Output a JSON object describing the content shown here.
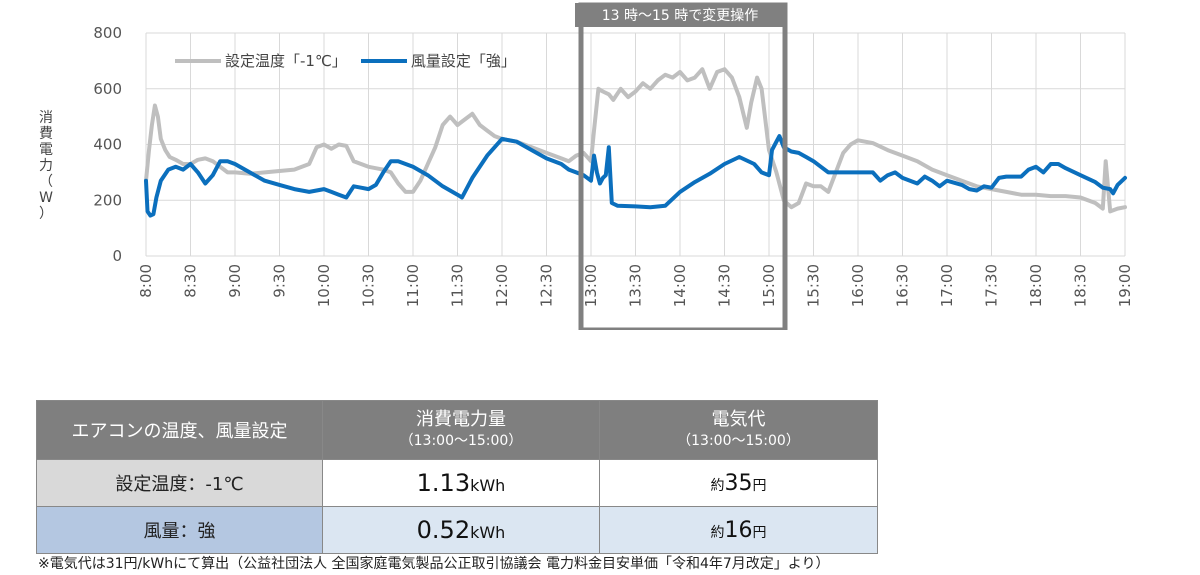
{
  "chart_data": {
    "type": "line",
    "y_ticks": [
      "0",
      "200",
      "400",
      "600",
      "800"
    ],
    "ylim": [
      0,
      800
    ],
    "grid": true,
    "ylabel": "消費電力（W）",
    "x_ticks": [
      "8:00",
      "8:30",
      "9:00",
      "9:30",
      "10:00",
      "10:30",
      "11:00",
      "11:30",
      "12:00",
      "12:30",
      "13:00",
      "13:30",
      "14:00",
      "14:30",
      "15:00",
      "15:30",
      "16:00",
      "16:30",
      "17:00",
      "17:30",
      "18:00",
      "18:30",
      "19:00"
    ],
    "x_range_minutes": [
      480,
      1140
    ],
    "annotation": "13 時～15 時で変更操作",
    "annotation_range": [
      "13:00",
      "15:00"
    ],
    "series": [
      {
        "name": "設定温度「-1℃」",
        "color": "#bfbfbf",
        "points": [
          [
            "8:00",
            270
          ],
          [
            "8:02",
            380
          ],
          [
            "8:04",
            470
          ],
          [
            "8:06",
            540
          ],
          [
            "8:08",
            500
          ],
          [
            "8:10",
            420
          ],
          [
            "8:13",
            380
          ],
          [
            "8:16",
            355
          ],
          [
            "8:20",
            345
          ],
          [
            "8:25",
            330
          ],
          [
            "8:30",
            330
          ],
          [
            "8:35",
            345
          ],
          [
            "8:40",
            350
          ],
          [
            "8:45",
            340
          ],
          [
            "8:50",
            320
          ],
          [
            "8:55",
            300
          ],
          [
            "9:00",
            300
          ],
          [
            "9:10",
            295
          ],
          [
            "9:20",
            300
          ],
          [
            "9:30",
            305
          ],
          [
            "9:40",
            310
          ],
          [
            "9:50",
            330
          ],
          [
            "9:55",
            390
          ],
          [
            "10:00",
            400
          ],
          [
            "10:05",
            385
          ],
          [
            "10:10",
            400
          ],
          [
            "10:15",
            395
          ],
          [
            "10:20",
            340
          ],
          [
            "10:25",
            330
          ],
          [
            "10:30",
            320
          ],
          [
            "10:40",
            310
          ],
          [
            "10:45",
            300
          ],
          [
            "10:50",
            260
          ],
          [
            "10:55",
            230
          ],
          [
            "11:00",
            230
          ],
          [
            "11:05",
            270
          ],
          [
            "11:10",
            330
          ],
          [
            "11:15",
            390
          ],
          [
            "11:20",
            470
          ],
          [
            "11:25",
            500
          ],
          [
            "11:30",
            470
          ],
          [
            "11:35",
            490
          ],
          [
            "11:40",
            510
          ],
          [
            "11:45",
            470
          ],
          [
            "11:50",
            450
          ],
          [
            "11:55",
            430
          ],
          [
            "12:00",
            420
          ],
          [
            "12:10",
            410
          ],
          [
            "12:20",
            390
          ],
          [
            "12:30",
            370
          ],
          [
            "12:40",
            350
          ],
          [
            "12:45",
            340
          ],
          [
            "12:50",
            360
          ],
          [
            "12:55",
            370
          ],
          [
            "13:00",
            340
          ],
          [
            "13:02",
            450
          ],
          [
            "13:05",
            600
          ],
          [
            "13:08",
            590
          ],
          [
            "13:12",
            580
          ],
          [
            "13:15",
            560
          ],
          [
            "13:20",
            600
          ],
          [
            "13:25",
            570
          ],
          [
            "13:30",
            590
          ],
          [
            "13:35",
            620
          ],
          [
            "13:40",
            600
          ],
          [
            "13:45",
            630
          ],
          [
            "13:50",
            650
          ],
          [
            "13:55",
            640
          ],
          [
            "14:00",
            660
          ],
          [
            "14:05",
            630
          ],
          [
            "14:10",
            640
          ],
          [
            "14:15",
            670
          ],
          [
            "14:20",
            600
          ],
          [
            "14:25",
            660
          ],
          [
            "14:30",
            670
          ],
          [
            "14:35",
            640
          ],
          [
            "14:40",
            570
          ],
          [
            "14:45",
            460
          ],
          [
            "14:48",
            550
          ],
          [
            "14:52",
            640
          ],
          [
            "14:55",
            600
          ],
          [
            "15:00",
            380
          ],
          [
            "15:05",
            300
          ],
          [
            "15:10",
            200
          ],
          [
            "15:15",
            175
          ],
          [
            "15:20",
            190
          ],
          [
            "15:25",
            260
          ],
          [
            "15:30",
            250
          ],
          [
            "15:35",
            250
          ],
          [
            "15:40",
            230
          ],
          [
            "15:45",
            300
          ],
          [
            "15:50",
            370
          ],
          [
            "15:55",
            400
          ],
          [
            "16:00",
            415
          ],
          [
            "16:10",
            405
          ],
          [
            "16:20",
            380
          ],
          [
            "16:30",
            360
          ],
          [
            "16:40",
            340
          ],
          [
            "16:50",
            310
          ],
          [
            "17:00",
            290
          ],
          [
            "17:10",
            270
          ],
          [
            "17:20",
            250
          ],
          [
            "17:30",
            240
          ],
          [
            "17:40",
            230
          ],
          [
            "17:50",
            220
          ],
          [
            "18:00",
            220
          ],
          [
            "18:10",
            215
          ],
          [
            "18:20",
            215
          ],
          [
            "18:30",
            210
          ],
          [
            "18:35",
            200
          ],
          [
            "18:40",
            190
          ],
          [
            "18:45",
            170
          ],
          [
            "18:47",
            340
          ],
          [
            "18:50",
            160
          ],
          [
            "18:55",
            170
          ],
          [
            "19:00",
            175
          ]
        ]
      },
      {
        "name": "風量設定「強」",
        "color": "#0b6fbd",
        "points": [
          [
            "8:00",
            270
          ],
          [
            "8:01",
            160
          ],
          [
            "8:03",
            145
          ],
          [
            "8:05",
            150
          ],
          [
            "8:07",
            210
          ],
          [
            "8:10",
            270
          ],
          [
            "8:15",
            310
          ],
          [
            "8:20",
            320
          ],
          [
            "8:25",
            310
          ],
          [
            "8:30",
            330
          ],
          [
            "8:35",
            300
          ],
          [
            "8:40",
            260
          ],
          [
            "8:45",
            290
          ],
          [
            "8:50",
            340
          ],
          [
            "8:55",
            340
          ],
          [
            "9:00",
            330
          ],
          [
            "9:10",
            300
          ],
          [
            "9:20",
            270
          ],
          [
            "9:30",
            255
          ],
          [
            "9:40",
            240
          ],
          [
            "9:50",
            230
          ],
          [
            "10:00",
            240
          ],
          [
            "10:05",
            230
          ],
          [
            "10:10",
            220
          ],
          [
            "10:15",
            210
          ],
          [
            "10:20",
            250
          ],
          [
            "10:25",
            245
          ],
          [
            "10:30",
            240
          ],
          [
            "10:35",
            255
          ],
          [
            "10:40",
            300
          ],
          [
            "10:45",
            340
          ],
          [
            "10:50",
            340
          ],
          [
            "11:00",
            320
          ],
          [
            "11:10",
            290
          ],
          [
            "11:20",
            250
          ],
          [
            "11:30",
            220
          ],
          [
            "11:33",
            210
          ],
          [
            "11:40",
            280
          ],
          [
            "11:50",
            360
          ],
          [
            "12:00",
            420
          ],
          [
            "12:10",
            410
          ],
          [
            "12:20",
            380
          ],
          [
            "12:30",
            350
          ],
          [
            "12:40",
            330
          ],
          [
            "12:45",
            310
          ],
          [
            "12:50",
            300
          ],
          [
            "12:55",
            290
          ],
          [
            "13:00",
            270
          ],
          [
            "13:02",
            360
          ],
          [
            "13:04",
            300
          ],
          [
            "13:06",
            260
          ],
          [
            "13:08",
            280
          ],
          [
            "13:10",
            290
          ],
          [
            "13:12",
            390
          ],
          [
            "13:14",
            190
          ],
          [
            "13:18",
            180
          ],
          [
            "13:30",
            178
          ],
          [
            "13:40",
            175
          ],
          [
            "13:50",
            180
          ],
          [
            "14:00",
            230
          ],
          [
            "14:10",
            265
          ],
          [
            "14:20",
            295
          ],
          [
            "14:30",
            330
          ],
          [
            "14:40",
            355
          ],
          [
            "14:50",
            330
          ],
          [
            "14:55",
            300
          ],
          [
            "15:00",
            290
          ],
          [
            "15:02",
            380
          ],
          [
            "15:05",
            410
          ],
          [
            "15:07",
            430
          ],
          [
            "15:10",
            390
          ],
          [
            "15:15",
            375
          ],
          [
            "15:20",
            370
          ],
          [
            "15:25",
            355
          ],
          [
            "15:30",
            340
          ],
          [
            "15:35",
            320
          ],
          [
            "15:40",
            300
          ],
          [
            "15:50",
            300
          ],
          [
            "16:00",
            300
          ],
          [
            "16:10",
            300
          ],
          [
            "16:15",
            270
          ],
          [
            "16:20",
            290
          ],
          [
            "16:25",
            300
          ],
          [
            "16:30",
            280
          ],
          [
            "16:40",
            260
          ],
          [
            "16:45",
            285
          ],
          [
            "16:50",
            270
          ],
          [
            "16:55",
            250
          ],
          [
            "17:00",
            270
          ],
          [
            "17:10",
            255
          ],
          [
            "17:15",
            240
          ],
          [
            "17:20",
            235
          ],
          [
            "17:25",
            250
          ],
          [
            "17:30",
            245
          ],
          [
            "17:35",
            280
          ],
          [
            "17:40",
            285
          ],
          [
            "17:50",
            285
          ],
          [
            "17:55",
            310
          ],
          [
            "18:00",
            320
          ],
          [
            "18:05",
            300
          ],
          [
            "18:10",
            330
          ],
          [
            "18:15",
            330
          ],
          [
            "18:20",
            315
          ],
          [
            "18:30",
            290
          ],
          [
            "18:40",
            265
          ],
          [
            "18:45",
            245
          ],
          [
            "18:50",
            240
          ],
          [
            "18:52",
            225
          ],
          [
            "18:55",
            255
          ],
          [
            "19:00",
            280
          ]
        ]
      }
    ],
    "legend_position": "top-left"
  },
  "table": {
    "headers": {
      "c1": "エアコンの温度、風量設定",
      "c2_main": "消費電力量",
      "c2_sub": "（13:00～15:00）",
      "c3_main": "電気代",
      "c3_sub": "（13:00～15:00）"
    },
    "rows": [
      {
        "label": "設定温度：-1℃",
        "kwh_value": "1.13",
        "kwh_unit": "kWh",
        "yen_prefix": "約",
        "yen_value": "35",
        "yen_unit": "円"
      },
      {
        "label": "風量：強",
        "kwh_value": "0.52",
        "kwh_unit": "kWh",
        "yen_prefix": "約",
        "yen_value": "16",
        "yen_unit": "円"
      }
    ]
  },
  "footnote": "※電気代は31円/kWhにて算出（公益社団法人 全国家庭電気製品公正取引協議会 電力料金目安単価「令和4年7月改定」より）"
}
